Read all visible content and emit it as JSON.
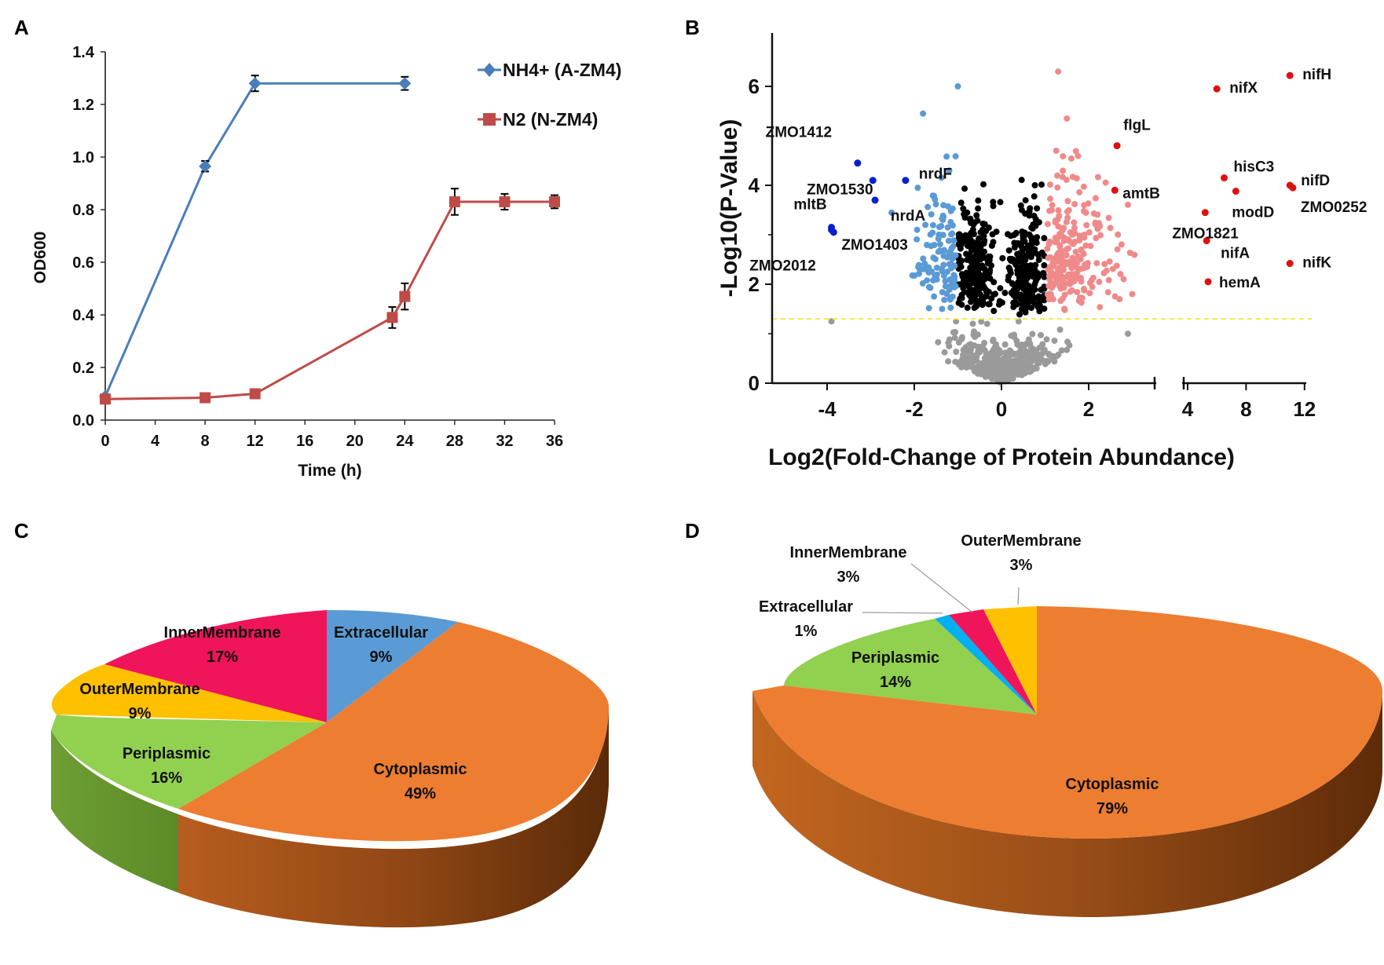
{
  "panel_labels": [
    "A",
    "B",
    "C",
    "D"
  ],
  "chart_data": [
    {
      "panel": "A",
      "type": "line",
      "title": "",
      "xlabel": "Time (h)",
      "ylabel": "OD600",
      "xlim": [
        0,
        36
      ],
      "ylim": [
        0.0,
        1.4
      ],
      "xticks": [
        "0",
        "4",
        "8",
        "12",
        "16",
        "20",
        "24",
        "28",
        "32",
        "36"
      ],
      "yticks": [
        "0.0",
        "0.2",
        "0.4",
        "0.6",
        "0.8",
        "1.0",
        "1.2",
        "1.4"
      ],
      "legend_position": "top-right",
      "series": [
        {
          "name": "NH4+ (A-ZM4)",
          "color": "#4a7ebb",
          "marker": "diamond",
          "x": [
            0,
            8,
            12,
            24
          ],
          "y": [
            0.09,
            0.965,
            1.28,
            1.28
          ],
          "err": [
            0.0,
            0.02,
            0.03,
            0.025
          ]
        },
        {
          "name": "N2 (N-ZM4)",
          "color": "#be4b48",
          "marker": "square",
          "x": [
            0,
            8,
            12,
            23,
            24,
            28,
            32,
            36
          ],
          "y": [
            0.08,
            0.085,
            0.1,
            0.39,
            0.47,
            0.83,
            0.83,
            0.83
          ],
          "err": [
            0.0,
            0.005,
            0.005,
            0.04,
            0.05,
            0.05,
            0.03,
            0.025
          ]
        }
      ]
    },
    {
      "panel": "B",
      "type": "scatter",
      "title": "",
      "xlabel": "Log2(Fold-Change of Protein Abundance)",
      "ylabel": "-Log10(P-Value)",
      "xticks_left": [
        "-4",
        "-2",
        "0",
        "2"
      ],
      "xticks_right": [
        "4",
        "8",
        "12"
      ],
      "yticks": [
        "0",
        "2",
        "4",
        "6"
      ],
      "ylim": [
        0,
        7
      ],
      "significance_threshold": 1.3,
      "colors": {
        "not_significant": "#9a9a9a",
        "significant_small_change": "#000000",
        "down_regulated": "#5b9bd5",
        "up_regulated": "#f08a8a",
        "highlight_down": "#0a1fcf",
        "highlight_up": "#e01010",
        "threshold_line": "#f5e84a"
      },
      "highlighted_down": [
        {
          "label": "ZMO1412",
          "x": -3.3,
          "y": 4.45
        },
        {
          "label": "ZMO1530",
          "x": -2.95,
          "y": 4.1
        },
        {
          "label": "nrdF",
          "x": -2.2,
          "y": 4.1
        },
        {
          "label": "nrdA",
          "x": -2.9,
          "y": 3.7
        },
        {
          "label": "mltB",
          "x": -3.9,
          "y": 3.15
        },
        {
          "label": "ZMO1403",
          "x": -3.85,
          "y": 3.05
        },
        {
          "label": "ZMO2012",
          "x": -3.9,
          "y": 3.1
        }
      ],
      "highlighted_up": [
        {
          "label": "nifH",
          "x": 11.0,
          "y": 6.22
        },
        {
          "label": "nifX",
          "x": 6.0,
          "y": 5.95
        },
        {
          "label": "flgL",
          "x": 2.65,
          "y": 4.8
        },
        {
          "label": "hisC3",
          "x": 6.5,
          "y": 4.15
        },
        {
          "label": "nifD",
          "x": 11.0,
          "y": 4.0
        },
        {
          "label": "amtB",
          "x": 2.6,
          "y": 3.9
        },
        {
          "label": "modD",
          "x": 7.3,
          "y": 3.88
        },
        {
          "label": "ZMO0252",
          "x": 11.2,
          "y": 3.95
        },
        {
          "label": "ZMO1821",
          "x": 5.2,
          "y": 3.45
        },
        {
          "label": "nifA",
          "x": 5.3,
          "y": 2.88
        },
        {
          "label": "nifK",
          "x": 11.0,
          "y": 2.42
        },
        {
          "label": "hemA",
          "x": 5.4,
          "y": 2.05
        }
      ]
    },
    {
      "panel": "C",
      "type": "pie",
      "title": "",
      "slices": [
        {
          "name": "Extracellular",
          "label": "9%",
          "value": 9,
          "color": "#5b9bd5"
        },
        {
          "name": "Cytoplasmic",
          "label": "49%",
          "value": 49,
          "color": "#ed7d31"
        },
        {
          "name": "Periplasmic",
          "label": "16%",
          "value": 16,
          "color": "#92d050"
        },
        {
          "name": "OuterMembrane",
          "label": "9%",
          "value": 9,
          "color": "#ffc000"
        },
        {
          "name": "InnerMembrane",
          "label": "17%",
          "value": 17,
          "color": "#f0145a"
        }
      ]
    },
    {
      "panel": "D",
      "type": "pie",
      "title": "",
      "slices": [
        {
          "name": "Cytoplasmic",
          "label": "79%",
          "value": 79,
          "color": "#ed7d31"
        },
        {
          "name": "Periplasmic",
          "label": "14%",
          "value": 14,
          "color": "#92d050"
        },
        {
          "name": "Extracellular",
          "label": "1%",
          "value": 1,
          "color": "#00b0f0"
        },
        {
          "name": "InnerMembrane",
          "label": "3%",
          "value": 3,
          "color": "#f0145a"
        },
        {
          "name": "OuterMembrane",
          "label": "3%",
          "value": 3,
          "color": "#ffc000"
        }
      ]
    }
  ]
}
